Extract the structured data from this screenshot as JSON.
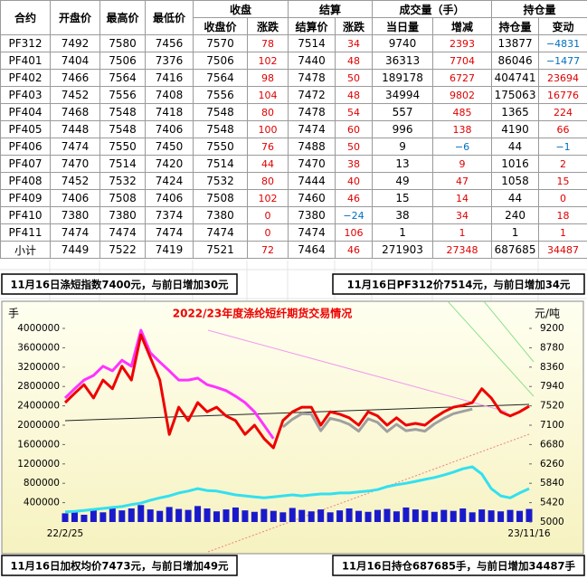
{
  "table": {
    "spanning": [
      "合约",
      "开盘价",
      "最高价",
      "最低价"
    ],
    "groups": [
      "收盘",
      "结算",
      "成交量（手）",
      "持仓量"
    ],
    "subheaders": [
      "收盘价",
      "涨跌",
      "结算价",
      "涨跌",
      "当日量",
      "增减",
      "持仓量",
      "变动"
    ],
    "rows": [
      [
        "PF312",
        "7492",
        "7580",
        "7456",
        "7570",
        "78",
        "7514",
        "34",
        "9740",
        "2393",
        "13877",
        "−4831"
      ],
      [
        "PF401",
        "7404",
        "7506",
        "7376",
        "7506",
        "102",
        "7440",
        "48",
        "36313",
        "7704",
        "86046",
        "−1477"
      ],
      [
        "PF402",
        "7466",
        "7564",
        "7416",
        "7564",
        "98",
        "7478",
        "50",
        "189178",
        "6727",
        "404741",
        "23694"
      ],
      [
        "PF403",
        "7452",
        "7556",
        "7408",
        "7556",
        "104",
        "7472",
        "48",
        "34994",
        "9802",
        "175063",
        "16776"
      ],
      [
        "PF404",
        "7468",
        "7548",
        "7418",
        "7548",
        "80",
        "7478",
        "54",
        "557",
        "485",
        "1365",
        "224"
      ],
      [
        "PF405",
        "7448",
        "7548",
        "7406",
        "7548",
        "100",
        "7474",
        "60",
        "996",
        "138",
        "4190",
        "66"
      ],
      [
        "PF406",
        "7474",
        "7550",
        "7450",
        "7550",
        "76",
        "7488",
        "50",
        "9",
        "−6",
        "44",
        "−1"
      ],
      [
        "PF407",
        "7470",
        "7514",
        "7420",
        "7514",
        "44",
        "7470",
        "38",
        "13",
        "9",
        "1016",
        "2"
      ],
      [
        "PF408",
        "7452",
        "7532",
        "7424",
        "7532",
        "80",
        "7444",
        "40",
        "49",
        "47",
        "1058",
        "15"
      ],
      [
        "PF409",
        "7406",
        "7508",
        "7406",
        "7508",
        "102",
        "7460",
        "46",
        "15",
        "14",
        "44",
        "0"
      ],
      [
        "PF410",
        "7380",
        "7380",
        "7374",
        "7380",
        "0",
        "7380",
        "−24",
        "38",
        "34",
        "240",
        "18"
      ],
      [
        "PF411",
        "7474",
        "7474",
        "7474",
        "7474",
        "0",
        "7474",
        "106",
        "1",
        "1",
        "1",
        "1"
      ],
      [
        "小计",
        "7449",
        "7522",
        "7419",
        "7521",
        "72",
        "7464",
        "46",
        "271903",
        "27348",
        "687685",
        "34487"
      ]
    ]
  },
  "notes": [
    "11月16日涤短指数7400元，与前日增加30元",
    "11月16日PF312价7514元，与前日增加34元",
    "11月16日加权均价7473元，与前日增加49元",
    "11月16日持仓687685手，与前日增加34487手"
  ],
  "chart_data": {
    "type": "combo",
    "title": "2022/23年度涤纶短纤期货交易情况",
    "y_label": "手",
    "y2_label": "元/吨",
    "categories": [
      "22/2/25",
      null,
      null,
      null,
      null,
      null,
      null,
      null,
      null,
      null,
      null,
      null,
      null,
      null,
      null,
      null,
      null,
      null,
      null,
      null,
      null,
      null,
      null,
      null,
      null,
      null,
      null,
      null,
      null,
      null,
      null,
      null,
      null,
      null,
      null,
      null,
      null,
      null,
      null,
      null,
      null,
      null,
      null,
      null,
      null,
      null,
      null,
      null,
      null,
      "23/11/16"
    ],
    "ylim": [
      0,
      4000000
    ],
    "yticks": [
      400000,
      800000,
      1200000,
      1600000,
      2000000,
      2400000,
      2800000,
      3200000,
      3600000,
      4000000
    ],
    "y2lim": [
      5000,
      9200
    ],
    "y2ticks": [
      5000,
      5420,
      5840,
      6260,
      6680,
      7100,
      7520,
      7940,
      8360,
      8780,
      9200
    ],
    "series": [
      {
        "type": "bar",
        "color": "#1a1acc",
        "values": [
          180000,
          220000,
          150000,
          260000,
          200000,
          300000,
          240000,
          280000,
          350000,
          260000,
          230000,
          310000,
          270000,
          250000,
          330000,
          280000,
          220000,
          260000,
          300000,
          240000,
          210000,
          270000,
          230000,
          200000,
          290000,
          250000,
          220000,
          260000,
          200000,
          240000,
          280000,
          230000,
          210000,
          250000,
          270000,
          220000,
          300000,
          260000,
          240000,
          210000,
          250000,
          230000,
          280000,
          200000,
          260000,
          240000,
          220000,
          250000,
          230000,
          270000
        ]
      },
      {
        "type": "line",
        "color": "#33e0f0",
        "values": [
          210000,
          220000,
          240000,
          260000,
          280000,
          300000,
          320000,
          360000,
          390000,
          450000,
          500000,
          540000,
          600000,
          640000,
          690000,
          650000,
          640000,
          600000,
          560000,
          540000,
          520000,
          500000,
          520000,
          540000,
          560000,
          540000,
          560000,
          580000,
          580000,
          600000,
          600000,
          620000,
          640000,
          670000,
          730000,
          770000,
          800000,
          840000,
          880000,
          920000,
          970000,
          1030000,
          1100000,
          1140000,
          990000,
          690000,
          540000,
          500000,
          600000,
          690000
        ]
      },
      {
        "type": "line",
        "axis": "y2",
        "color": "#a0a0a0",
        "values": [
          null,
          null,
          null,
          null,
          null,
          null,
          null,
          null,
          null,
          null,
          null,
          null,
          null,
          null,
          null,
          null,
          null,
          null,
          null,
          null,
          null,
          null,
          null,
          7060,
          7230,
          7350,
          7340,
          6980,
          7250,
          7200,
          7120,
          6970,
          7240,
          7160,
          6960,
          7120,
          6980,
          7010,
          6970,
          7130,
          7250,
          7350,
          7400,
          7450,
          null,
          null,
          null,
          null,
          null,
          null
        ]
      },
      {
        "type": "line",
        "axis": "y2",
        "color": "#ff33ff",
        "values": [
          7690,
          7890,
          8080,
          8180,
          8380,
          8280,
          8510,
          8380,
          9160,
          8670,
          8470,
          8280,
          8080,
          8080,
          8120,
          7980,
          7920,
          7850,
          7730,
          7590,
          7390,
          7100,
          6810,
          null,
          null,
          null,
          null,
          null,
          null,
          null,
          null,
          null,
          null,
          null,
          null,
          null,
          null,
          null,
          null,
          null,
          null,
          null,
          null,
          null,
          null,
          null,
          null,
          null,
          null,
          null
        ]
      },
      {
        "type": "line",
        "axis": "y2",
        "color": "#ee0000",
        "values": [
          7590,
          7790,
          7980,
          7690,
          8080,
          7890,
          8380,
          8080,
          9060,
          8570,
          8080,
          6900,
          7490,
          7200,
          7590,
          7390,
          7490,
          7300,
          7200,
          6900,
          7100,
          6810,
          6610,
          7200,
          7390,
          7490,
          7490,
          7100,
          7390,
          7340,
          7260,
          7100,
          7390,
          7300,
          7100,
          7260,
          7100,
          7140,
          7100,
          7260,
          7390,
          7490,
          7530,
          7590,
          7890,
          7690,
          7390,
          7300,
          7390,
          7510
        ]
      }
    ]
  }
}
